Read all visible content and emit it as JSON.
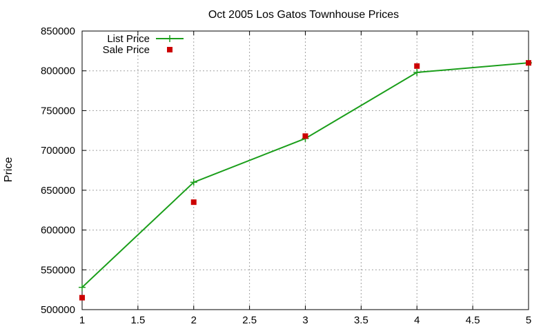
{
  "chart_data": {
    "type": "line",
    "title": "Oct 2005 Los Gatos Townhouse Prices",
    "xlabel": "",
    "ylabel": "Price",
    "xlim": [
      1,
      5
    ],
    "ylim": [
      500000,
      850000
    ],
    "xticks": [
      "1",
      "1.5",
      "2",
      "2.5",
      "3",
      "3.5",
      "4",
      "4.5",
      "5"
    ],
    "yticks": [
      "500000",
      "550000",
      "600000",
      "650000",
      "700000",
      "750000",
      "800000",
      "850000"
    ],
    "grid": true,
    "legend_position": "top-left",
    "series": [
      {
        "name": "List Price",
        "style": "lines+points",
        "marker": "plus",
        "color": "#1a9e1a",
        "x": [
          1,
          2,
          3,
          4,
          5
        ],
        "y": [
          528000,
          660000,
          715000,
          798000,
          810000
        ]
      },
      {
        "name": "Sale Price",
        "style": "points",
        "marker": "square",
        "color": "#cc0000",
        "x": [
          1,
          2,
          3,
          4,
          5
        ],
        "y": [
          515000,
          635000,
          718000,
          806000,
          810000
        ]
      }
    ]
  }
}
